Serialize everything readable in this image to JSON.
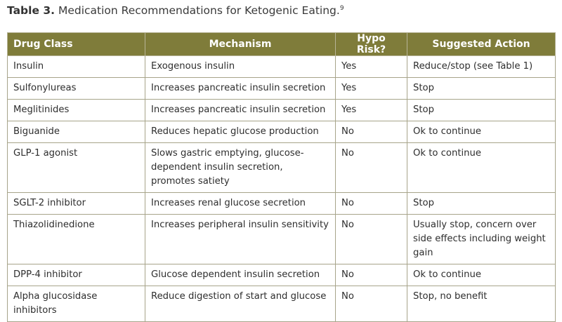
{
  "title": {
    "number": "Table 3.",
    "text": "Medication Recommendations for Ketogenic Eating.",
    "ref": "9"
  },
  "table": {
    "headers": [
      "Drug Class",
      "Mechanism",
      "Hypo Risk?",
      "Suggested Action"
    ],
    "rows": [
      [
        "Insulin",
        "Exogenous insulin",
        "Yes",
        "Reduce/stop (see Table 1)"
      ],
      [
        "Sulfonylureas",
        "Increases pancreatic insulin secretion",
        "Yes",
        "Stop"
      ],
      [
        "Meglitinides",
        "Increases pancreatic insulin secretion",
        "Yes",
        "Stop"
      ],
      [
        "Biguanide",
        "Reduces hepatic glucose production",
        "No",
        "Ok to continue"
      ],
      [
        "GLP-1 agonist",
        "Slows gastric emptying, glucose-dependent insulin secretion, promotes satiety",
        "No",
        "Ok to continue"
      ],
      [
        "SGLT-2 inhibitor",
        "Increases renal glucose secretion",
        "No",
        "Stop"
      ],
      [
        "Thiazolidinedione",
        "Increases peripheral insulin sensitivity",
        "No",
        "Usually stop, concern over side effects including weight gain"
      ],
      [
        "DPP-4 inhibitor",
        "Glucose dependent insulin secretion",
        "No",
        "Ok to continue"
      ],
      [
        "Alpha glucosidase inhibitors",
        "Reduce digestion of start and glucose",
        "No",
        "Stop, no benefit"
      ]
    ]
  },
  "colors": {
    "header_bg": "#7f7c3a",
    "header_text": "#ffffff",
    "grid": "#a7a48a"
  }
}
